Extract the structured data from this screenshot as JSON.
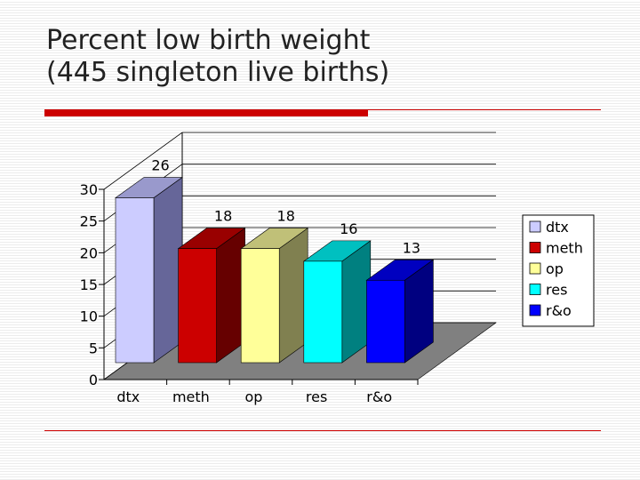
{
  "slide": {
    "title": "Percent low birth weight\n(445 singleton live births)"
  },
  "colors": {
    "accent_rule": "#cc0000"
  },
  "chart_data": {
    "type": "bar",
    "title": "",
    "xlabel": "",
    "ylabel": "",
    "categories": [
      "dtx",
      "meth",
      "op",
      "res",
      "r&o"
    ],
    "values": [
      26,
      18,
      18,
      16,
      13
    ],
    "data_labels": [
      "26",
      "18",
      "18",
      "16",
      "13"
    ],
    "ylim": [
      0,
      30
    ],
    "yticks": [
      0,
      5,
      10,
      15,
      20,
      25,
      30
    ],
    "grid": true,
    "three_d": true,
    "legend": {
      "placement": "right",
      "entries": [
        "dtx",
        "meth",
        "op",
        "res",
        "r&o"
      ]
    },
    "bar_colors": [
      {
        "front": "#ccccff",
        "side": "#666699",
        "top": "#9999cc"
      },
      {
        "front": "#cc0000",
        "side": "#660000",
        "top": "#990000"
      },
      {
        "front": "#ffff99",
        "side": "#808050",
        "top": "#c0c078"
      },
      {
        "front": "#00ffff",
        "side": "#008080",
        "top": "#00c0c0"
      },
      {
        "front": "#0000ff",
        "side": "#000080",
        "top": "#0000c0"
      }
    ],
    "floor_color": "#808080"
  }
}
